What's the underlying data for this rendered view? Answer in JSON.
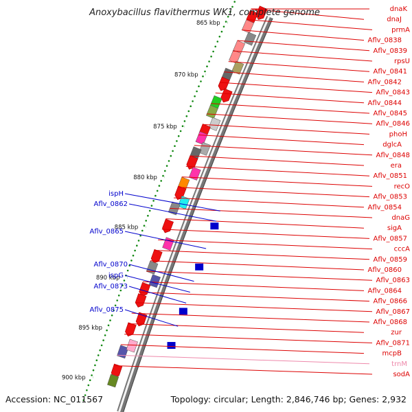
{
  "title": "Anoxybacillus flavithermus WK1, complete genome",
  "footer": {
    "accession": "Accession: NC_011567",
    "summary": "Topology: circular; Length: 2,846,746 bp; Genes: 2,932"
  },
  "colors": {
    "forward_label": "#dd0000",
    "reverse_label": "#0000cc",
    "trna_label": "#ee88aa",
    "ruler_dots": "#118811",
    "ring": "#777777"
  },
  "scale_ticks": [
    "865 kbp",
    "870 kbp",
    "875 kbp",
    "880 kbp",
    "885 kbp",
    "890 kbp",
    "895 kbp",
    "900 kbp"
  ],
  "forward_labels": [
    "dnaK",
    "dnaJ",
    "prmA",
    "Aflv_0838",
    "Aflv_0839",
    "rpsU",
    "Aflv_0841",
    "Aflv_0842",
    "Aflv_0843",
    "Aflv_0844",
    "Aflv_0845",
    "Aflv_0846",
    "phoH",
    "dglcA",
    "Aflv_0848",
    "era",
    "Aflv_0851",
    "recO",
    "Aflv_0853",
    "Aflv_0854",
    "dnaG",
    "sigA",
    "Aflv_0857",
    "cccA",
    "Aflv_0859",
    "Aflv_0860",
    "Aflv_0863",
    "Aflv_0864",
    "Aflv_0866",
    "Aflv_0867",
    "Aflv_0868",
    "zur",
    "Aflv_0871",
    "mcpB",
    "trnM",
    "sodA"
  ],
  "reverse_labels": [
    "ispH",
    "Aflv_0862",
    "Aflv_0865",
    "Aflv_0870",
    "ispG",
    "Aflv_0873",
    "Aflv_0875"
  ]
}
